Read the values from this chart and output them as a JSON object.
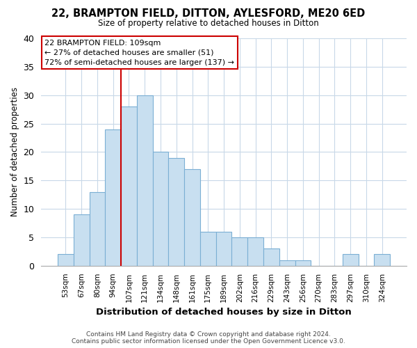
{
  "title": "22, BRAMPTON FIELD, DITTON, AYLESFORD, ME20 6ED",
  "subtitle": "Size of property relative to detached houses in Ditton",
  "xlabel": "Distribution of detached houses by size in Ditton",
  "ylabel": "Number of detached properties",
  "bin_labels": [
    "53sqm",
    "67sqm",
    "80sqm",
    "94sqm",
    "107sqm",
    "121sqm",
    "134sqm",
    "148sqm",
    "161sqm",
    "175sqm",
    "189sqm",
    "202sqm",
    "216sqm",
    "229sqm",
    "243sqm",
    "256sqm",
    "270sqm",
    "283sqm",
    "297sqm",
    "310sqm",
    "324sqm"
  ],
  "bar_heights": [
    2,
    9,
    13,
    24,
    28,
    30,
    20,
    19,
    17,
    6,
    6,
    5,
    5,
    3,
    1,
    1,
    0,
    0,
    2,
    0,
    2
  ],
  "bar_color": "#c8dff0",
  "bar_edge_color": "#7bafd4",
  "highlight_line_color": "#cc0000",
  "annotation_lines": [
    "22 BRAMPTON FIELD: 109sqm",
    "← 27% of detached houses are smaller (51)",
    "72% of semi-detached houses are larger (137) →"
  ],
  "ylim": [
    0,
    40
  ],
  "yticks": [
    0,
    5,
    10,
    15,
    20,
    25,
    30,
    35,
    40
  ],
  "footer_line1": "Contains HM Land Registry data © Crown copyright and database right 2024.",
  "footer_line2": "Contains public sector information licensed under the Open Government Licence v3.0.",
  "bg_color": "#ffffff",
  "plot_bg_color": "#ffffff",
  "grid_color": "#c8d8e8"
}
